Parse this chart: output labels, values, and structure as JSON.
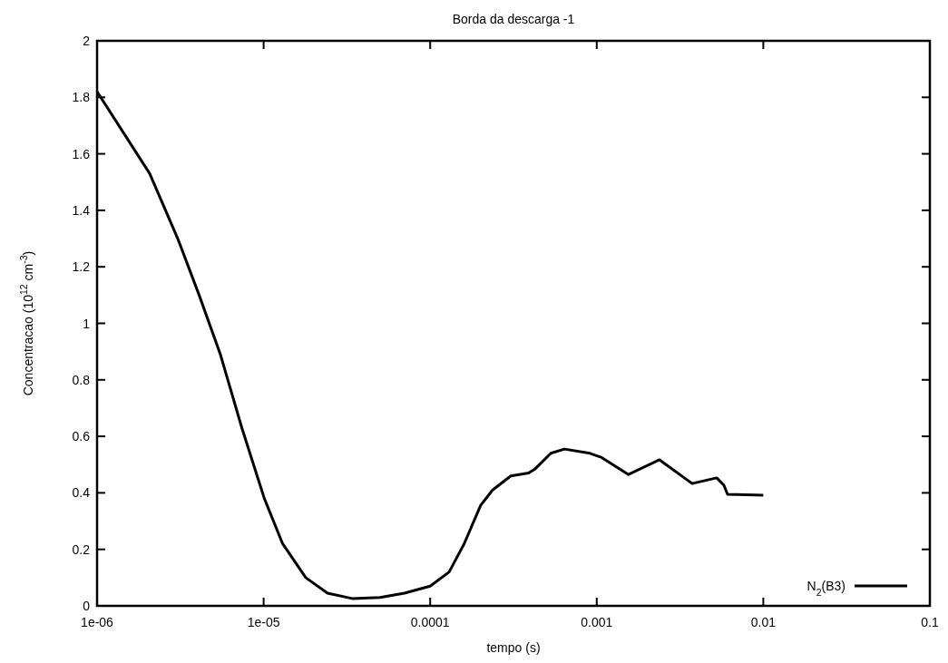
{
  "chart_data": {
    "type": "line",
    "title": "Borda da descarga -1",
    "xlabel": "tempo (s)",
    "ylabel": "Concentracao (10$^{12}$ cm$^{-3}$)",
    "log": "x",
    "xlim": [
      1e-06,
      0.1
    ],
    "xticks": [
      {
        "value": 1e-06,
        "label": "1e-06"
      },
      {
        "value": 1e-05,
        "label": "1e-05"
      },
      {
        "value": 0.0001,
        "label": "0.0001"
      },
      {
        "value": 0.001,
        "label": "0.001"
      },
      {
        "value": 0.01,
        "label": "0.01"
      },
      {
        "value": 0.1,
        "label": "0.1"
      }
    ],
    "ylim": [
      0,
      2
    ],
    "yticks": [
      0,
      0.2,
      0.4,
      0.6,
      0.8,
      1,
      1.2,
      1.4,
      1.6,
      1.8,
      2
    ],
    "grid": false,
    "legend": "bottom right",
    "marker": "none",
    "line_style": "solid",
    "series": [
      {
        "name": "N$_{2}$(B3)",
        "color": "#000000",
        "x": [
          1e-06,
          2.07e-06,
          3.05e-06,
          4.1e-06,
          5.5e-06,
          7.4e-06,
          1.01e-05,
          1.3e-05,
          1.79e-05,
          2.42e-05,
          3.4e-05,
          5e-05,
          7e-05,
          0.0001,
          0.00013,
          0.00016,
          0.000201,
          0.000237,
          0.000305,
          0.00039,
          0.000427,
          0.00053,
          0.00064,
          0.00091,
          0.00107,
          0.00155,
          0.00238,
          0.00374,
          0.00525,
          0.0058,
          0.0061,
          0.01
        ],
        "values": [
          1.82,
          1.53,
          1.3,
          1.1,
          0.89,
          0.63,
          0.38,
          0.22,
          0.1,
          0.045,
          0.026,
          0.03,
          0.045,
          0.07,
          0.12,
          0.22,
          0.356,
          0.41,
          0.46,
          0.47,
          0.485,
          0.54,
          0.555,
          0.54,
          0.525,
          0.465,
          0.517,
          0.433,
          0.453,
          0.427,
          0.395,
          0.392
        ]
      }
    ]
  }
}
